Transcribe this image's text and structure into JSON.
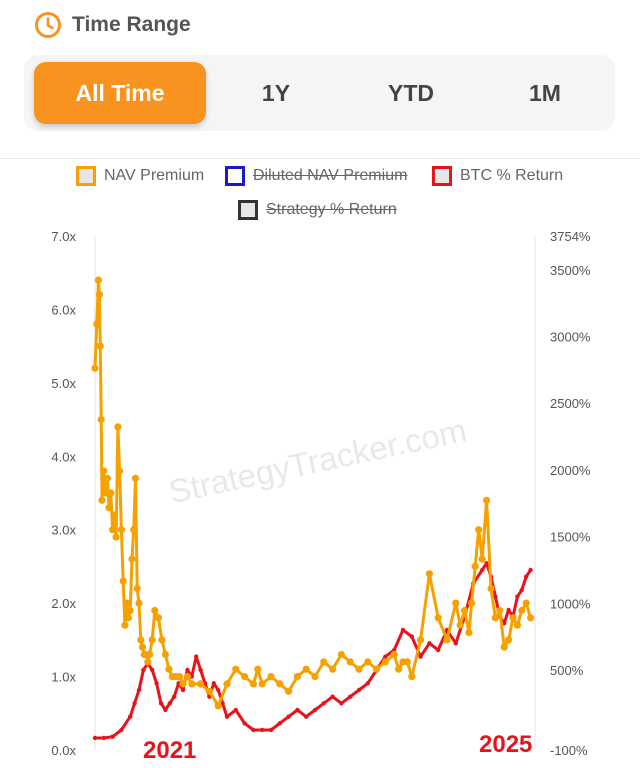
{
  "header": {
    "title": "Time Range",
    "icon": "clock-icon",
    "accent": "#f7931e"
  },
  "tabs": [
    {
      "label": "All Time",
      "active": true
    },
    {
      "label": "1Y",
      "active": false
    },
    {
      "label": "YTD",
      "active": false
    },
    {
      "label": "1M",
      "active": false
    }
  ],
  "colors": {
    "accent": "#f7931e",
    "nav": "#f5a200",
    "btc": "#e8121b",
    "diluted": "#1a1acc",
    "strategy": "#333333"
  },
  "chart_data": {
    "type": "line",
    "watermark": "StrategyTracker.com",
    "legend": [
      {
        "name": "NAV Premium",
        "color": "#f5a200",
        "fill": "#e6e6e6",
        "visible": true
      },
      {
        "name": "Diluted NAV Premium",
        "color": "#1a1acc",
        "fill": "#ffffff",
        "visible": false
      },
      {
        "name": "BTC % Return",
        "color": "#e8121b",
        "fill": "#e6e6e6",
        "visible": true
      },
      {
        "name": "Strategy % Return",
        "color": "#333333",
        "fill": "#e6e6e6",
        "visible": false
      }
    ],
    "y_left": {
      "min": 0,
      "max": 7,
      "ticks": [
        "7.0x",
        "6.0x",
        "5.0x",
        "4.0x",
        "3.0x",
        "2.0x",
        "1.0x",
        "0.0x"
      ]
    },
    "y_right": {
      "min": -100,
      "max": 3754,
      "ticks": [
        "3754%",
        "3500%",
        "3000%",
        "2500%",
        "2000%",
        "1500%",
        "1000%",
        "500%",
        "-100%"
      ]
    },
    "x_range": [
      2020.6,
      2025.6
    ],
    "x_annotations": [
      "2021",
      "2025"
    ],
    "series": [
      {
        "name": "NAV Premium",
        "axis": "left",
        "color": "#f5a200",
        "x": [
          2020.6,
          2020.62,
          2020.64,
          2020.65,
          2020.66,
          2020.67,
          2020.68,
          2020.7,
          2020.71,
          2020.72,
          2020.74,
          2020.76,
          2020.78,
          2020.8,
          2020.82,
          2020.84,
          2020.86,
          2020.88,
          2020.9,
          2020.92,
          2020.94,
          2020.96,
          2020.98,
          2021.0,
          2021.02,
          2021.04,
          2021.06,
          2021.08,
          2021.1,
          2021.12,
          2021.14,
          2021.16,
          2021.18,
          2021.2,
          2021.22,
          2021.25,
          2021.28,
          2021.32,
          2021.36,
          2021.4,
          2021.44,
          2021.48,
          2021.52,
          2021.56,
          2021.6,
          2021.65,
          2021.7,
          2021.8,
          2021.9,
          2022.0,
          2022.1,
          2022.2,
          2022.3,
          2022.4,
          2022.45,
          2022.5,
          2022.6,
          2022.7,
          2022.8,
          2022.9,
          2023.0,
          2023.1,
          2023.2,
          2023.3,
          2023.4,
          2023.5,
          2023.6,
          2023.7,
          2023.8,
          2023.9,
          2024.0,
          2024.05,
          2024.1,
          2024.15,
          2024.2,
          2024.3,
          2024.4,
          2024.5,
          2024.6,
          2024.7,
          2024.75,
          2024.8,
          2024.85,
          2024.88,
          2024.92,
          2024.96,
          2025.0,
          2025.05,
          2025.1,
          2025.15,
          2025.2,
          2025.25,
          2025.3,
          2025.35,
          2025.4,
          2025.45,
          2025.5,
          2025.55
        ],
        "values": [
          5.2,
          5.8,
          6.4,
          6.2,
          5.5,
          4.5,
          3.4,
          3.8,
          3.6,
          3.5,
          3.7,
          3.3,
          3.5,
          3.0,
          3.2,
          2.9,
          4.4,
          3.8,
          3.0,
          2.3,
          1.7,
          2.0,
          1.8,
          1.9,
          2.6,
          3.0,
          3.7,
          2.2,
          2.0,
          1.5,
          1.4,
          1.3,
          1.3,
          1.2,
          1.3,
          1.5,
          1.9,
          1.8,
          1.5,
          1.3,
          1.1,
          1.0,
          1.0,
          1.0,
          0.9,
          1.0,
          0.9,
          0.9,
          0.8,
          0.6,
          0.9,
          1.1,
          1.0,
          0.9,
          1.1,
          0.9,
          1.0,
          0.9,
          0.8,
          1.0,
          1.1,
          1.0,
          1.2,
          1.1,
          1.3,
          1.2,
          1.1,
          1.2,
          1.1,
          1.2,
          1.3,
          1.1,
          1.2,
          1.2,
          1.0,
          1.5,
          2.4,
          1.8,
          1.5,
          2.0,
          1.7,
          1.9,
          1.6,
          2.0,
          2.5,
          3.0,
          2.6,
          3.4,
          2.2,
          1.8,
          1.9,
          1.4,
          1.5,
          1.8,
          1.7,
          1.9,
          2.0,
          1.8
        ]
      },
      {
        "name": "BTC % Return",
        "axis": "right",
        "color": "#e8121b",
        "x": [
          2020.6,
          2020.7,
          2020.8,
          2020.9,
          2021.0,
          2021.05,
          2021.1,
          2021.15,
          2021.2,
          2021.25,
          2021.3,
          2021.35,
          2021.4,
          2021.45,
          2021.5,
          2021.55,
          2021.6,
          2021.65,
          2021.7,
          2021.75,
          2021.8,
          2021.85,
          2021.9,
          2021.95,
          2022.0,
          2022.05,
          2022.1,
          2022.2,
          2022.3,
          2022.4,
          2022.5,
          2022.6,
          2022.7,
          2022.8,
          2022.9,
          2023.0,
          2023.1,
          2023.2,
          2023.3,
          2023.4,
          2023.5,
          2023.6,
          2023.7,
          2023.8,
          2023.9,
          2024.0,
          2024.1,
          2024.2,
          2024.3,
          2024.4,
          2024.5,
          2024.6,
          2024.7,
          2024.8,
          2024.9,
          2025.0,
          2025.05,
          2025.1,
          2025.15,
          2025.2,
          2025.25,
          2025.3,
          2025.35,
          2025.4,
          2025.45,
          2025.5,
          2025.55
        ],
        "values": [
          -10,
          -10,
          0,
          50,
          150,
          250,
          350,
          500,
          550,
          500,
          400,
          250,
          200,
          250,
          300,
          400,
          350,
          500,
          450,
          600,
          500,
          400,
          300,
          400,
          350,
          250,
          150,
          200,
          100,
          50,
          50,
          50,
          100,
          150,
          200,
          150,
          200,
          250,
          300,
          250,
          300,
          350,
          400,
          500,
          600,
          650,
          800,
          750,
          600,
          700,
          650,
          800,
          700,
          900,
          1150,
          1250,
          1300,
          1200,
          1050,
          900,
          850,
          950,
          900,
          1050,
          1100,
          1200,
          1250
        ]
      }
    ]
  }
}
